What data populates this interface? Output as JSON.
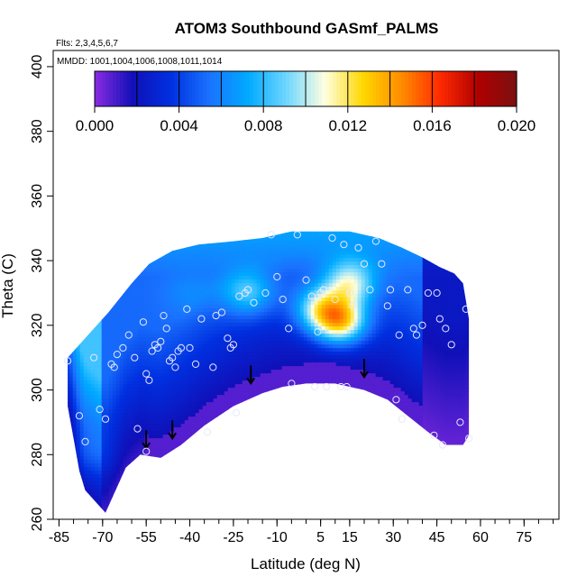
{
  "chart_data": {
    "type": "heatmap",
    "title": "ATOM3 Southbound GASmf_PALMS",
    "annotations": [
      "Flts: 2,3,4,5,6,7",
      "MMDD: 1001,1004,1006,1008,1011,1014"
    ],
    "xlabel": "Latitude (deg N)",
    "ylabel": "Theta (C)",
    "xlim": [
      -87,
      87
    ],
    "ylim": [
      260,
      405
    ],
    "x_ticks": [
      -85,
      -70,
      -55,
      -40,
      -25,
      -10,
      5,
      15,
      30,
      45,
      60,
      75
    ],
    "x_tick_labels": [
      "-85",
      "-70",
      "-55",
      "-40",
      "-25",
      "-10",
      "5",
      "15",
      "30",
      "45",
      "60",
      "75"
    ],
    "x_minor_step": 5,
    "y_ticks": [
      260,
      280,
      300,
      320,
      340,
      360,
      380,
      400
    ],
    "y_tick_labels": [
      "260",
      "280",
      "300",
      "320",
      "340",
      "360",
      "380",
      "400"
    ],
    "grid": false,
    "colorbar": {
      "range": [
        0,
        0.02
      ],
      "tick_values": [
        0,
        0.004,
        0.008,
        0.012,
        0.016,
        0.02
      ],
      "tick_labels": [
        "0.000",
        "0.004",
        "0.008",
        "0.012",
        "0.016",
        "0.020"
      ],
      "divisions": [
        0,
        0.002,
        0.004,
        0.006,
        0.008,
        0.01,
        0.012,
        0.014,
        0.016,
        0.018,
        0.02
      ],
      "colors": [
        "#8a2be2",
        "#1010b8",
        "#0030e0",
        "#1a73ff",
        "#00aaff",
        "#6fd6ff",
        "#ffffe0",
        "#ffd700",
        "#ff8c00",
        "#ff2a00",
        "#b00000",
        "#7a1010"
      ]
    },
    "coverage_upper": [
      [
        -82,
        310
      ],
      [
        -79,
        313
      ],
      [
        -74,
        318
      ],
      [
        -68,
        324
      ],
      [
        -60,
        333
      ],
      [
        -54,
        339
      ],
      [
        -46,
        343
      ],
      [
        -37,
        345
      ],
      [
        -25,
        346
      ],
      [
        -15,
        347
      ],
      [
        -5,
        349
      ],
      [
        5,
        349
      ],
      [
        15,
        349
      ],
      [
        25,
        347
      ],
      [
        33,
        344
      ],
      [
        40,
        341
      ],
      [
        46,
        338
      ],
      [
        51,
        336
      ],
      [
        54,
        333
      ],
      [
        56,
        322
      ],
      [
        56,
        300
      ]
    ],
    "coverage_lower": [
      [
        -82,
        295
      ],
      [
        -80,
        285
      ],
      [
        -78,
        275
      ],
      [
        -76,
        269
      ],
      [
        -72,
        265
      ],
      [
        -69,
        262
      ],
      [
        -66,
        268
      ],
      [
        -62,
        276
      ],
      [
        -57,
        280
      ],
      [
        -50,
        279
      ],
      [
        -43,
        283
      ],
      [
        -35,
        289
      ],
      [
        -25,
        295
      ],
      [
        -15,
        299
      ],
      [
        -8,
        301
      ],
      [
        0,
        302
      ],
      [
        10,
        302
      ],
      [
        20,
        300
      ],
      [
        28,
        297
      ],
      [
        35,
        292
      ],
      [
        42,
        287
      ],
      [
        48,
        283
      ],
      [
        54,
        283
      ],
      [
        56,
        286
      ]
    ],
    "high_values": [
      {
        "lat": 12,
        "theta": 321,
        "value": 0.0125
      },
      {
        "lat": 15,
        "theta": 333,
        "value": 0.01
      },
      {
        "lat": 5,
        "theta": 325,
        "value": 0.01
      },
      {
        "lat": -20,
        "theta": 330,
        "value": 0.008
      },
      {
        "lat": -40,
        "theta": 330,
        "value": 0.005
      },
      {
        "lat": -60,
        "theta": 300,
        "value": 0.004
      },
      {
        "lat": -75,
        "theta": 280,
        "value": 0.005
      }
    ],
    "arrows": [
      {
        "lat": -55,
        "theta": 282
      },
      {
        "lat": -46,
        "theta": 285
      },
      {
        "lat": -19,
        "theta": 302
      },
      {
        "lat": 20,
        "theta": 304
      }
    ],
    "points": [
      [
        -82,
        309
      ],
      [
        -78,
        292
      ],
      [
        -76,
        284
      ],
      [
        -73,
        310
      ],
      [
        -71,
        294
      ],
      [
        -69,
        291
      ],
      [
        -67,
        308
      ],
      [
        -66,
        307
      ],
      [
        -65,
        311
      ],
      [
        -63,
        313
      ],
      [
        -61,
        317
      ],
      [
        -59,
        310
      ],
      [
        -58,
        288
      ],
      [
        -56,
        321
      ],
      [
        -55,
        305
      ],
      [
        -55,
        281
      ],
      [
        -54,
        303
      ],
      [
        -53,
        312
      ],
      [
        -52,
        314
      ],
      [
        -51,
        313
      ],
      [
        -50,
        315
      ],
      [
        -49,
        323
      ],
      [
        -48,
        319
      ],
      [
        -47,
        309
      ],
      [
        -46,
        310
      ],
      [
        -45,
        307
      ],
      [
        -44,
        312
      ],
      [
        -43,
        313
      ],
      [
        -41,
        325
      ],
      [
        -40,
        313
      ],
      [
        -38,
        308
      ],
      [
        -36,
        322
      ],
      [
        -34,
        287
      ],
      [
        -32,
        307
      ],
      [
        -31,
        323
      ],
      [
        -29,
        324
      ],
      [
        -27,
        316
      ],
      [
        -26,
        313
      ],
      [
        -25,
        314
      ],
      [
        -24,
        293
      ],
      [
        -23,
        329
      ],
      [
        -21,
        330
      ],
      [
        -20,
        331
      ],
      [
        -18,
        327
      ],
      [
        -14,
        330
      ],
      [
        -12,
        348
      ],
      [
        -10,
        335
      ],
      [
        -8,
        328
      ],
      [
        -6,
        319
      ],
      [
        -5,
        302
      ],
      [
        -3,
        348
      ],
      [
        0,
        334
      ],
      [
        2,
        329
      ],
      [
        3,
        301
      ],
      [
        4,
        318
      ],
      [
        5,
        330
      ],
      [
        6,
        331
      ],
      [
        7,
        301
      ],
      [
        9,
        347
      ],
      [
        10,
        328
      ],
      [
        12,
        301
      ],
      [
        13,
        345
      ],
      [
        14,
        301
      ],
      [
        15,
        330
      ],
      [
        16,
        326
      ],
      [
        18,
        344
      ],
      [
        20,
        339
      ],
      [
        22,
        331
      ],
      [
        24,
        346
      ],
      [
        26,
        339
      ],
      [
        28,
        326
      ],
      [
        29,
        331
      ],
      [
        31,
        297
      ],
      [
        32,
        317
      ],
      [
        33,
        291
      ],
      [
        35,
        331
      ],
      [
        37,
        319
      ],
      [
        38,
        317
      ],
      [
        40,
        320
      ],
      [
        42,
        330
      ],
      [
        44,
        286
      ],
      [
        45,
        330
      ],
      [
        46,
        322
      ],
      [
        47,
        283
      ],
      [
        48,
        319
      ],
      [
        50,
        314
      ],
      [
        53,
        290
      ],
      [
        55,
        325
      ],
      [
        56,
        285
      ]
    ]
  }
}
